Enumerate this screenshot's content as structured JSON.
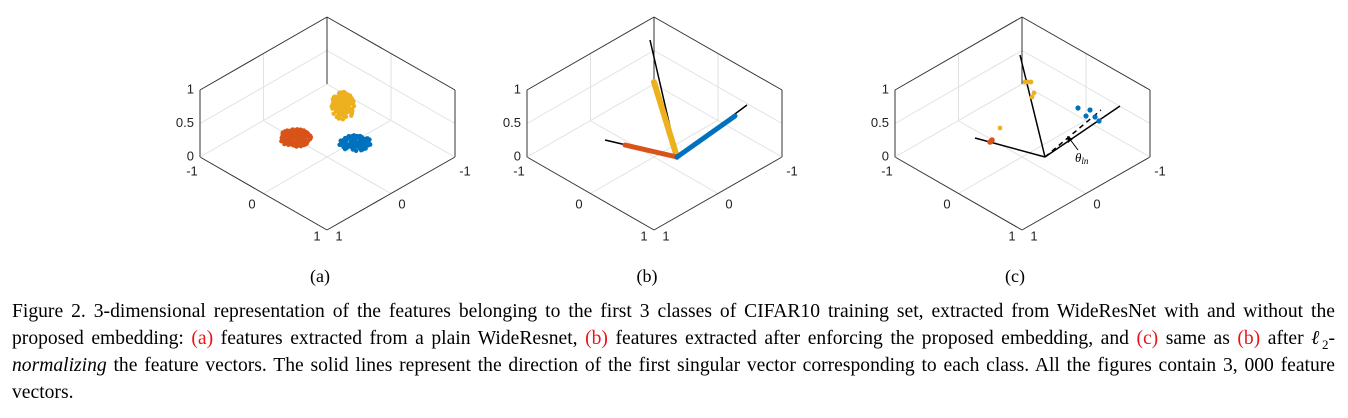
{
  "figure": {
    "panels": [
      {
        "label": "(a)",
        "zticks": [
          "1",
          "0.5",
          "0"
        ],
        "xticks": [
          "-1",
          "0",
          "1"
        ],
        "yticks": [
          "-1",
          "0",
          "1"
        ]
      },
      {
        "label": "(b)",
        "zticks": [
          "1",
          "0.5",
          "0"
        ],
        "xticks": [
          "-1",
          "0",
          "1"
        ],
        "yticks": [
          "-1",
          "0",
          "1"
        ]
      },
      {
        "label": "(c)",
        "zticks": [
          "1",
          "0.5",
          "0"
        ],
        "xticks": [
          "-1",
          "0",
          "1"
        ],
        "yticks": [
          "-1",
          "0",
          "1"
        ],
        "annotation": {
          "symbol": "θ",
          "subscript": "ln"
        }
      }
    ],
    "caption": [
      {
        "text": "Figure 2.  3-dimensional representation of the features belonging to the first 3 classes of CIFAR10 training set, extracted from WideResNet with and without the proposed embedding: "
      },
      {
        "text": "(a)",
        "color": "#e8141b"
      },
      {
        "text": " features extracted from a plain WideResnet, "
      },
      {
        "text": "(b)",
        "color": "#e8141b"
      },
      {
        "text": " features extracted after enforcing the proposed embedding, and "
      },
      {
        "text": "(c)",
        "color": "#e8141b"
      },
      {
        "text": " same as "
      },
      {
        "text": "(b)",
        "color": "#e8141b"
      },
      {
        "text": " after "
      },
      {
        "text": "ℓ",
        "italic": true
      },
      {
        "text": "2",
        "sub": true
      },
      {
        "text": "-normalizing",
        "italic": true
      },
      {
        "text": " the feature vectors. The solid lines represent the direction of the first singular vector corresponding to each class. All the figures contain 3, 000 feature vectors."
      }
    ]
  }
}
